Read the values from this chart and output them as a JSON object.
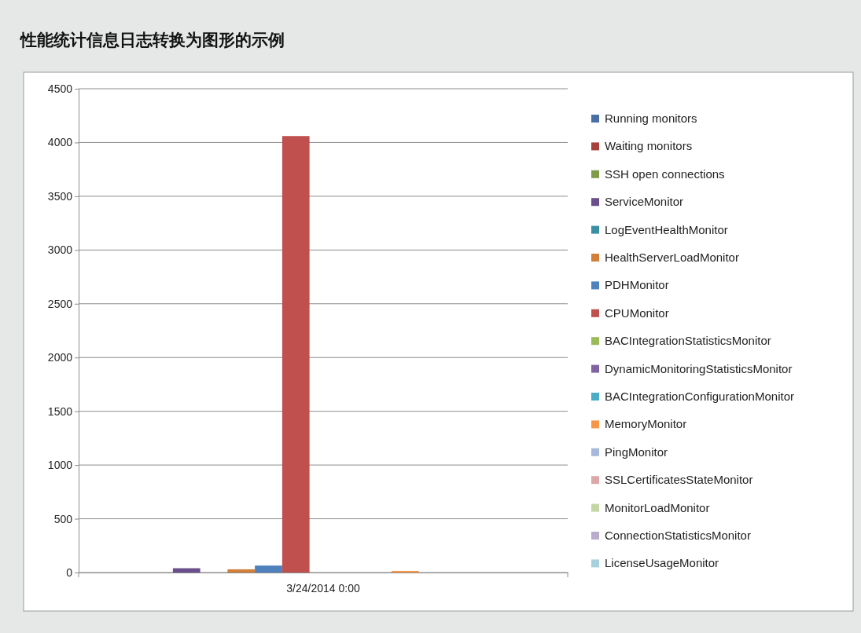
{
  "chart_data": {
    "type": "bar",
    "title": "性能统计信息日志转换为图形的示例",
    "categories": [
      "3/24/2014 0:00"
    ],
    "series": [
      {
        "name": "Running monitors",
        "color": "#4a6fa5",
        "values": [
          0
        ]
      },
      {
        "name": "Waiting monitors",
        "color": "#a5403d",
        "values": [
          0
        ]
      },
      {
        "name": "SSH open connections",
        "color": "#7f9a48",
        "values": [
          0
        ]
      },
      {
        "name": "ServiceMonitor",
        "color": "#6a4f8c",
        "values": [
          40
        ]
      },
      {
        "name": "LogEventHealthMonitor",
        "color": "#3a8fa3",
        "values": [
          0
        ]
      },
      {
        "name": "HealthServerLoadMonitor",
        "color": "#d27f3a",
        "values": [
          30
        ]
      },
      {
        "name": "PDHMonitor",
        "color": "#4f81bd",
        "values": [
          65
        ]
      },
      {
        "name": "CPUMonitor",
        "color": "#c0504d",
        "values": [
          4060
        ]
      },
      {
        "name": "BACIntegrationStatisticsMonitor",
        "color": "#9bbb59",
        "values": [
          0
        ]
      },
      {
        "name": "DynamicMonitoringStatisticsMonitor",
        "color": "#8064a2",
        "values": [
          0
        ]
      },
      {
        "name": "BACIntegrationConfigurationMonitor",
        "color": "#4bacc6",
        "values": [
          0
        ]
      },
      {
        "name": "MemoryMonitor",
        "color": "#f79646",
        "values": [
          15
        ]
      },
      {
        "name": "PingMonitor",
        "color": "#a7b9da",
        "values": [
          0
        ]
      },
      {
        "name": "SSLCertificatesStateMonitor",
        "color": "#dba8a7",
        "values": [
          0
        ]
      },
      {
        "name": "MonitorLoadMonitor",
        "color": "#c4d6a4",
        "values": [
          0
        ]
      },
      {
        "name": "ConnectionStatisticsMonitor",
        "color": "#b8adcc",
        "values": [
          0
        ]
      },
      {
        "name": "LicenseUsageMonitor",
        "color": "#a6d0dc",
        "values": [
          0
        ]
      }
    ],
    "ylim": [
      0,
      4500
    ],
    "yticks": [
      0,
      500,
      1000,
      1500,
      2000,
      2500,
      3000,
      3500,
      4000,
      4500
    ],
    "grid": "y",
    "legend": "right"
  }
}
